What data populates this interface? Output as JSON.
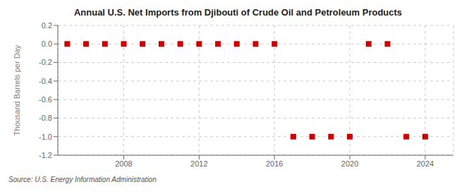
{
  "chart_data": {
    "type": "scatter",
    "title": "Annual U.S. Net Imports from Djibouti of Crude Oil and Petroleum Products",
    "ylabel": "Thousand Barrels per Day",
    "annotations": [
      "Source: U.S. Energy Information Administration"
    ],
    "x": [
      2005,
      2006,
      2007,
      2008,
      2009,
      2010,
      2011,
      2012,
      2013,
      2014,
      2015,
      2016,
      2017,
      2018,
      2019,
      2020,
      2021,
      2022,
      2023,
      2024
    ],
    "values": [
      0,
      0,
      0,
      0,
      0,
      0,
      0,
      0,
      0,
      0,
      0,
      0,
      -1,
      -1,
      -1,
      -1,
      0,
      0,
      -1,
      -1
    ],
    "color": "#cc0000",
    "marker": "square",
    "xlim": [
      2004.5,
      2025.5
    ],
    "xticks": [
      2008,
      2012,
      2016,
      2020,
      2024
    ],
    "ylim": [
      -1.2,
      0.2
    ],
    "yticks": [
      0.2,
      {
        "value": 0.0,
        "label": "0.0"
      },
      -0.2,
      -0.4,
      -0.6,
      -0.8,
      {
        "value": -1.0,
        "label": "-1.0"
      },
      -1.2
    ],
    "grid": true
  }
}
